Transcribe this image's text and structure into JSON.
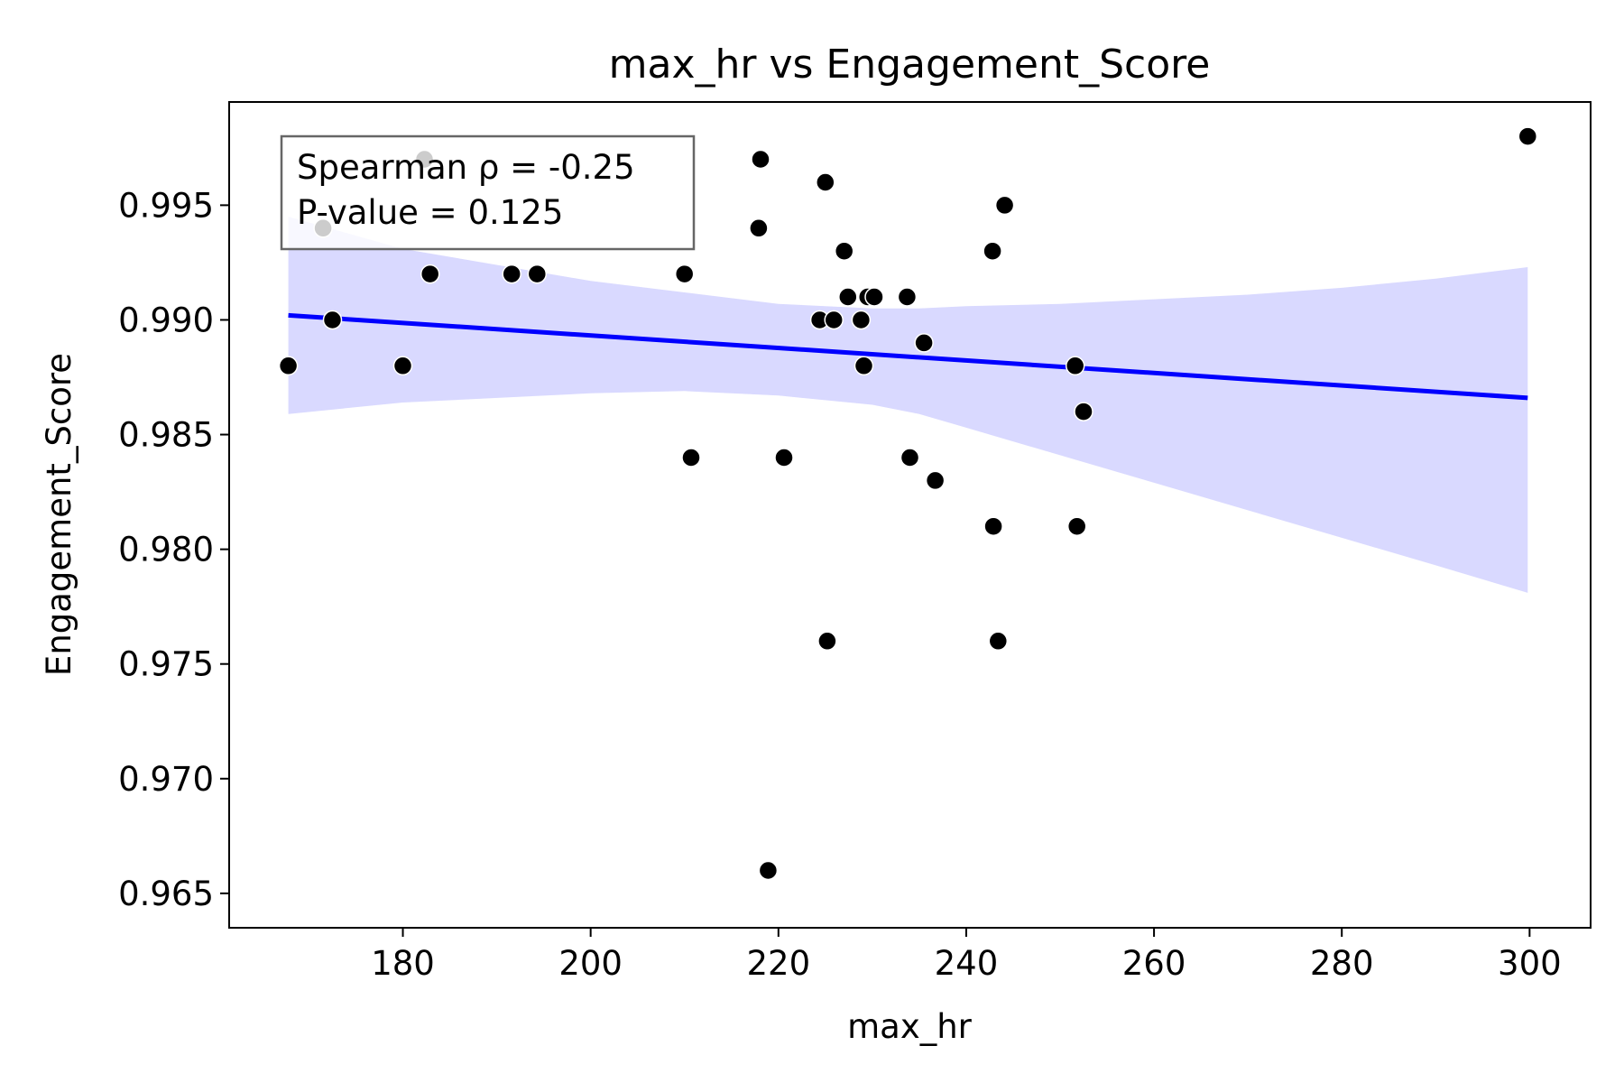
{
  "chart_data": {
    "type": "scatter",
    "title": "max_hr vs Engagement_Score",
    "xlabel": "max_hr",
    "ylabel": "Engagement_Score",
    "xlim": [
      161.5,
      306.5
    ],
    "ylim": [
      0.9635,
      0.9995
    ],
    "xticks": [
      "180",
      "200",
      "220",
      "240",
      "260",
      "280",
      "300"
    ],
    "yticks": [
      "0.965",
      "0.970",
      "0.975",
      "0.980",
      "0.985",
      "0.990",
      "0.995"
    ],
    "grid": false,
    "points": [
      {
        "x": 167.8,
        "y": 0.988
      },
      {
        "x": 171.5,
        "y": 0.994
      },
      {
        "x": 172.5,
        "y": 0.99
      },
      {
        "x": 180.0,
        "y": 0.988
      },
      {
        "x": 182.3,
        "y": 0.997
      },
      {
        "x": 182.9,
        "y": 0.992
      },
      {
        "x": 191.6,
        "y": 0.992
      },
      {
        "x": 194.3,
        "y": 0.992
      },
      {
        "x": 210.0,
        "y": 0.992
      },
      {
        "x": 210.7,
        "y": 0.984
      },
      {
        "x": 217.9,
        "y": 0.994
      },
      {
        "x": 218.1,
        "y": 0.997
      },
      {
        "x": 218.9,
        "y": 0.966
      },
      {
        "x": 220.6,
        "y": 0.984
      },
      {
        "x": 224.4,
        "y": 0.99
      },
      {
        "x": 225.0,
        "y": 0.996
      },
      {
        "x": 225.2,
        "y": 0.976
      },
      {
        "x": 225.9,
        "y": 0.99
      },
      {
        "x": 227.0,
        "y": 0.993
      },
      {
        "x": 227.4,
        "y": 0.991
      },
      {
        "x": 228.8,
        "y": 0.99
      },
      {
        "x": 229.1,
        "y": 0.988
      },
      {
        "x": 229.5,
        "y": 0.991
      },
      {
        "x": 230.2,
        "y": 0.991
      },
      {
        "x": 233.7,
        "y": 0.991
      },
      {
        "x": 234.0,
        "y": 0.984
      },
      {
        "x": 235.5,
        "y": 0.989
      },
      {
        "x": 236.7,
        "y": 0.983
      },
      {
        "x": 242.8,
        "y": 0.993
      },
      {
        "x": 242.9,
        "y": 0.981
      },
      {
        "x": 243.4,
        "y": 0.976
      },
      {
        "x": 244.1,
        "y": 0.995
      },
      {
        "x": 251.6,
        "y": 0.988
      },
      {
        "x": 251.8,
        "y": 0.981
      },
      {
        "x": 252.5,
        "y": 0.986
      },
      {
        "x": 299.8,
        "y": 0.998
      }
    ],
    "regression": {
      "x": [
        167.8,
        299.8
      ],
      "y": [
        0.9902,
        0.9866
      ]
    },
    "confidence_band": {
      "x": [
        167.8,
        180.0,
        200.0,
        210.0,
        220.0,
        230.0,
        235.0,
        240.0,
        250.0,
        260.0,
        270.0,
        280.0,
        290.0,
        299.8
      ],
      "upper": [
        0.9945,
        0.9931,
        0.9917,
        0.9912,
        0.9907,
        0.9905,
        0.9905,
        0.9906,
        0.9907,
        0.9909,
        0.9911,
        0.9914,
        0.9918,
        0.9923
      ],
      "lower": [
        0.9859,
        0.9864,
        0.9868,
        0.9869,
        0.9867,
        0.9863,
        0.9859,
        0.9853,
        0.9841,
        0.9829,
        0.9817,
        0.9805,
        0.9793,
        0.9781
      ]
    },
    "annotation": [
      "Spearman ρ = -0.25",
      "P-value = 0.125"
    ],
    "colors": {
      "points": "#000000",
      "line": "#0000ff",
      "band": "#d9d9ff",
      "annotation_border": "#666666"
    }
  }
}
